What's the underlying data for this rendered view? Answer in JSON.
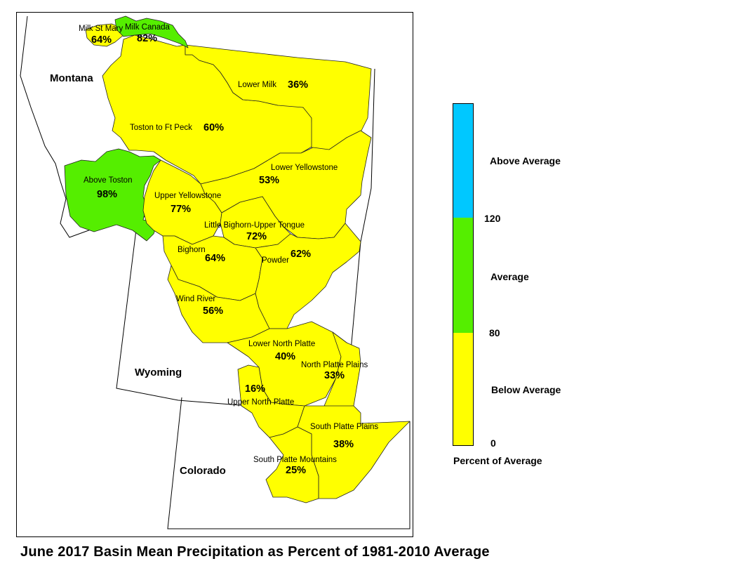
{
  "map": {
    "title": "June 2017 Basin Mean Precipitation as Percent of 1981-2010 Average",
    "states": [
      {
        "id": "montana",
        "name": "Montana"
      },
      {
        "id": "wyoming",
        "name": "Wyoming"
      },
      {
        "id": "colorado",
        "name": "Colorado"
      }
    ],
    "basins": [
      {
        "id": "milk-st-mary",
        "name": "Milk St Mary",
        "percent": "64%",
        "category": "below"
      },
      {
        "id": "milk-canada",
        "name": "Milk Canada",
        "percent": "82%",
        "category": "average"
      },
      {
        "id": "lower-milk",
        "name": "Lower Milk",
        "percent": "36%",
        "category": "below"
      },
      {
        "id": "toston-to-ft-peck",
        "name": "Toston to Ft Peck",
        "percent": "60%",
        "category": "below"
      },
      {
        "id": "above-toston",
        "name": "Above Toston",
        "percent": "98%",
        "category": "average"
      },
      {
        "id": "lower-yellowstone",
        "name": "Lower Yellowstone",
        "percent": "53%",
        "category": "below"
      },
      {
        "id": "upper-yellowstone",
        "name": "Upper Yellowstone",
        "percent": "77%",
        "category": "below"
      },
      {
        "id": "little-bighorn-upper-tongue",
        "name": "Little Bighorn-Upper Tongue",
        "percent": "72%",
        "category": "below"
      },
      {
        "id": "bighorn",
        "name": "Bighorn",
        "percent": "64%",
        "category": "below"
      },
      {
        "id": "powder",
        "name": "Powder",
        "percent": "62%",
        "category": "below"
      },
      {
        "id": "wind-river",
        "name": "Wind River",
        "percent": "56%",
        "category": "below"
      },
      {
        "id": "lower-north-platte",
        "name": "Lower North Platte",
        "percent": "40%",
        "category": "below"
      },
      {
        "id": "north-platte-plains",
        "name": "North Platte Plains",
        "percent": "33%",
        "category": "below"
      },
      {
        "id": "upper-north-platte",
        "name": "Upper North Platte",
        "percent": "16%",
        "category": "below"
      },
      {
        "id": "south-platte-plains",
        "name": "South Platte Plains",
        "percent": "38%",
        "category": "below"
      },
      {
        "id": "south-platte-mountains",
        "name": "South Platte Mountains",
        "percent": "25%",
        "category": "below"
      }
    ]
  },
  "legend": {
    "title": "Percent of Average",
    "categories": [
      {
        "key": "above",
        "label": "Above Average",
        "color": "#00c8ff",
        "from": 120
      },
      {
        "key": "average",
        "label": "Average",
        "color": "#55ee00",
        "from": 80,
        "to": 120
      },
      {
        "key": "below",
        "label": "Below Average",
        "color": "#ffff00",
        "from": 0,
        "to": 80
      }
    ],
    "ticks": [
      "120",
      "80",
      "0"
    ]
  }
}
